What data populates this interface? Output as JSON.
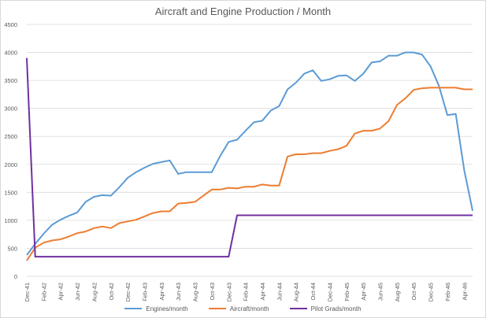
{
  "chart_data": {
    "type": "line",
    "title": "Aircraft and Engine Production / Month",
    "xlabel": "",
    "ylabel": "",
    "ylim": [
      0,
      4500
    ],
    "yticks": [
      0,
      500,
      1000,
      1500,
      2000,
      2500,
      3000,
      3500,
      4000,
      4500
    ],
    "grid": true,
    "legend_position": "bottom",
    "x": [
      "Dec-41",
      "Jan-42",
      "Feb-42",
      "Mar-42",
      "Apr-42",
      "May-42",
      "Jun-42",
      "Jul-42",
      "Aug-42",
      "Sep-42",
      "Oct-42",
      "Nov-42",
      "Dec-42",
      "Jan-43",
      "Feb-43",
      "Mar-43",
      "Apr-43",
      "May-43",
      "Jun-43",
      "Jul-43",
      "Aug-43",
      "Sep-43",
      "Oct-43",
      "Nov-43",
      "Dec-43",
      "Jan-44",
      "Feb-44",
      "Mar-44",
      "Apr-44",
      "May-44",
      "Jun-44",
      "Jul-44",
      "Aug-44",
      "Sep-44",
      "Oct-44",
      "Nov-44",
      "Dec-44",
      "Jan-45",
      "Feb-45",
      "Mar-45",
      "Apr-45",
      "May-45",
      "Jun-45",
      "Jul-45",
      "Aug-45",
      "Sep-45",
      "Oct-45",
      "Nov-45",
      "Dec-45",
      "Jan-46",
      "Feb-46",
      "Mar-46",
      "Apr-46",
      "May-46"
    ],
    "xtick_labels": [
      "Dec-41",
      "Feb-42",
      "Apr-42",
      "Jun-42",
      "Aug-42",
      "Oct-42",
      "Dec-42",
      "Feb-43",
      "Apr-43",
      "Jun-43",
      "Aug-43",
      "Oct-43",
      "Dec-43",
      "Feb-44",
      "Apr-44",
      "Jun-44",
      "Aug-44",
      "Oct-44",
      "Dec-44",
      "Feb-45",
      "Apr-45",
      "Jun-45",
      "Aug-45",
      "Oct-45",
      "Dec-45",
      "Feb-46",
      "Apr-46"
    ],
    "series": [
      {
        "name": "Engines/month",
        "color": "#5b9bd5",
        "values": [
          380,
          580,
          760,
          920,
          1010,
          1080,
          1140,
          1330,
          1420,
          1450,
          1440,
          1590,
          1760,
          1860,
          1940,
          2010,
          2040,
          2070,
          1830,
          1860,
          1860,
          1860,
          1860,
          2150,
          2400,
          2440,
          2600,
          2750,
          2780,
          2960,
          3040,
          3340,
          3460,
          3620,
          3680,
          3490,
          3520,
          3580,
          3590,
          3490,
          3620,
          3820,
          3840,
          3940,
          3940,
          4000,
          4000,
          3960,
          3750,
          3400,
          2880,
          2900,
          1900,
          1170
        ]
      },
      {
        "name": "Aircraft/month",
        "color": "#ed7d31",
        "values": [
          280,
          510,
          600,
          640,
          660,
          710,
          770,
          800,
          860,
          890,
          860,
          950,
          980,
          1010,
          1070,
          1130,
          1160,
          1160,
          1300,
          1310,
          1330,
          1440,
          1550,
          1550,
          1580,
          1570,
          1600,
          1600,
          1640,
          1620,
          1620,
          2140,
          2180,
          2180,
          2200,
          2200,
          2240,
          2270,
          2330,
          2550,
          2600,
          2600,
          2640,
          2770,
          3060,
          3180,
          3330,
          3360,
          3370,
          3370,
          3370,
          3370,
          3340,
          3340
        ]
      },
      {
        "name": "Pilot Grads/month",
        "color": "#7030a0",
        "values": [
          3900,
          350,
          350,
          350,
          350,
          350,
          350,
          350,
          350,
          350,
          350,
          350,
          350,
          350,
          350,
          350,
          350,
          350,
          350,
          350,
          350,
          350,
          350,
          350,
          350,
          1090,
          1090,
          1090,
          1090,
          1090,
          1090,
          1090,
          1090,
          1090,
          1090,
          1090,
          1090,
          1090,
          1090,
          1090,
          1090,
          1090,
          1090,
          1090,
          1090,
          1090,
          1090,
          1090,
          1090,
          1090,
          1090,
          1090,
          1090,
          1090
        ]
      }
    ]
  }
}
